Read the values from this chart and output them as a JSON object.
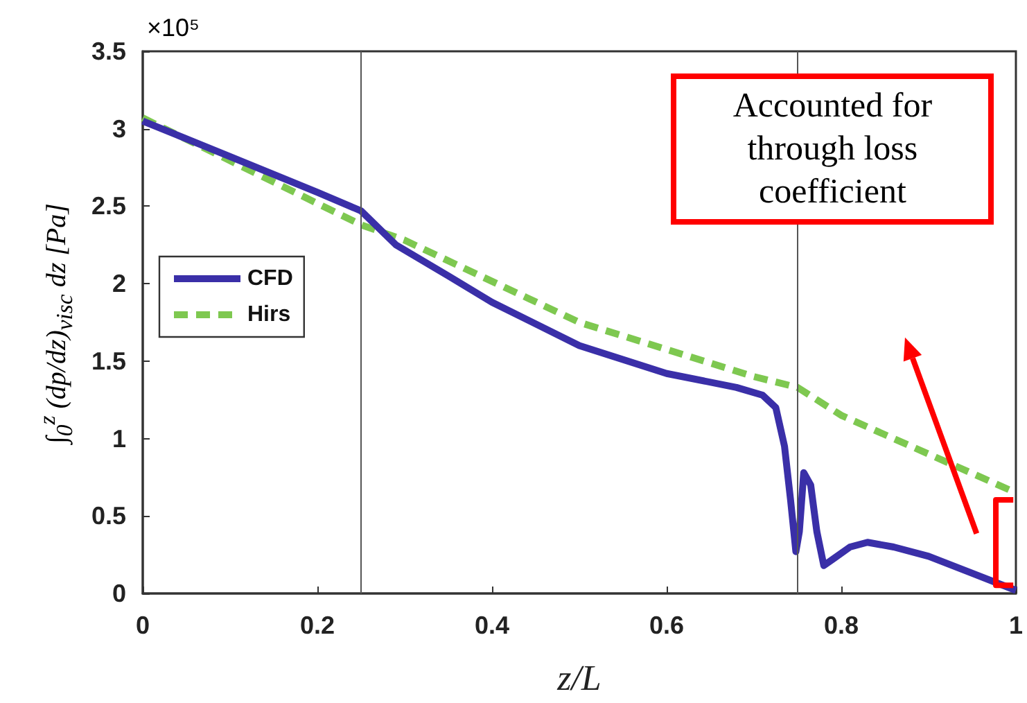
{
  "chart_data": {
    "type": "line",
    "xlabel": "z/L",
    "ylabel": "∫$_{0}$$^{z}$ (dp/dz)$_{visc}$ dz  [Pa]",
    "annotations": [
      "×10⁵",
      "Accounted for through loss coefficient"
    ],
    "series": [
      {
        "name": "CFD",
        "color": "#3a2fa8",
        "line_style": "solid",
        "x": [
          0,
          0.1,
          0.2,
          0.25,
          0.29,
          0.35,
          0.4,
          0.5,
          0.6,
          0.68,
          0.71,
          0.725,
          0.735,
          0.742,
          0.748,
          0.752,
          0.757,
          0.765,
          0.772,
          0.78,
          0.79,
          0.81,
          0.83,
          0.86,
          0.9,
          0.95,
          1.0
        ],
        "values": [
          3.05,
          2.82,
          2.59,
          2.47,
          2.25,
          2.05,
          1.88,
          1.6,
          1.42,
          1.33,
          1.28,
          1.2,
          0.95,
          0.6,
          0.27,
          0.4,
          0.78,
          0.7,
          0.4,
          0.18,
          0.22,
          0.3,
          0.33,
          0.3,
          0.24,
          0.13,
          0.02
        ]
      },
      {
        "name": "Hirs",
        "color": "#7ec850",
        "line_style": "dashed",
        "x": [
          0,
          0.25,
          0.3,
          0.5,
          0.7,
          0.75,
          0.8,
          0.9,
          1.0
        ],
        "values": [
          3.07,
          2.38,
          2.28,
          1.75,
          1.4,
          1.33,
          1.15,
          0.9,
          0.65
        ]
      }
    ],
    "xlim": [
      0,
      1
    ],
    "xticks": [
      0,
      0.2,
      0.4,
      0.6,
      0.8,
      1
    ],
    "ylim": [
      0,
      3.5
    ],
    "yticks": [
      0,
      0.5,
      1,
      1.5,
      2,
      2.5,
      3,
      3.5
    ],
    "ref_lines": [
      {
        "axis": "x",
        "value": 0.25,
        "color": "#555555"
      },
      {
        "axis": "x",
        "value": 0.75,
        "color": "#555555"
      }
    ],
    "legend": "left",
    "grid": false,
    "marker": "none"
  }
}
